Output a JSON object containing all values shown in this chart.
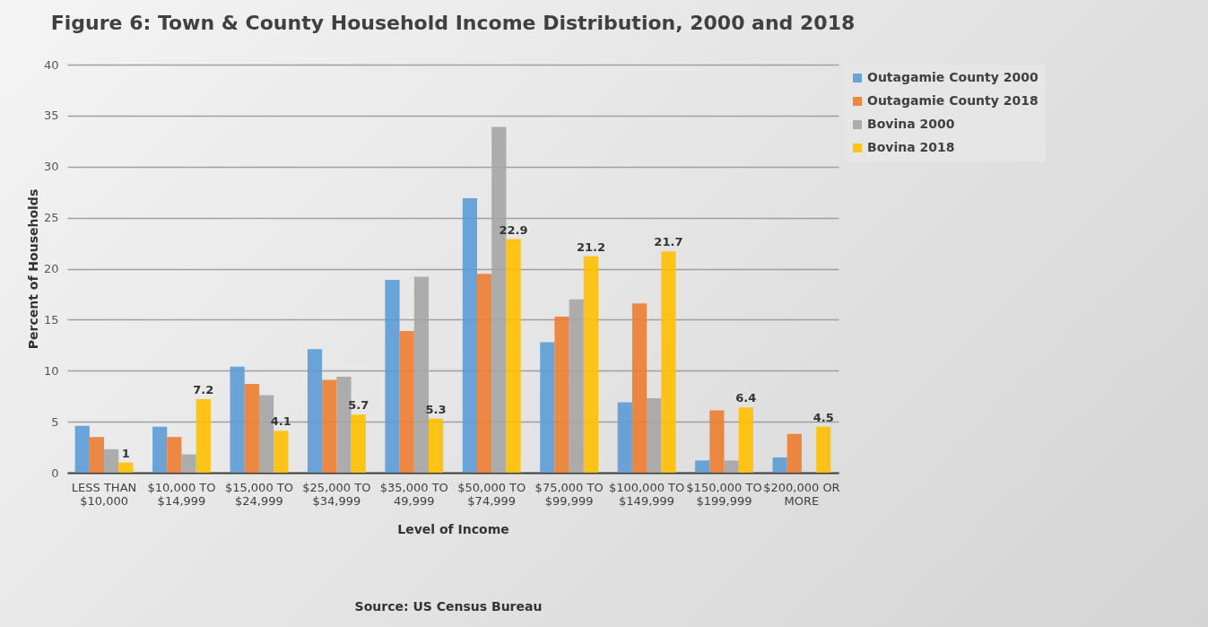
{
  "chart_data": {
    "type": "bar",
    "title": "Figure 6: Town & County Household Income Distribution, 2000 and 2018",
    "xlabel": "Level of Income",
    "ylabel": "Percent of Households",
    "annotations": [
      "Source:  US Census Bureau"
    ],
    "categories": [
      "LESS THAN $10,000",
      "$10,000 TO $14,999",
      "$15,000 TO $24,999",
      "$25,000 TO $34,999",
      "$35,000 TO 49,999",
      "$50,000 TO $74,999",
      "$75,000 TO $99,999",
      "$100,000 TO $149,999",
      "$150,000 TO $199,999",
      "$200,000 OR MORE"
    ],
    "series": [
      {
        "name": "Outagamie County 2000",
        "color": "#5b9bd5",
        "values": [
          4.6,
          4.5,
          10.4,
          12.1,
          18.9,
          26.9,
          12.8,
          6.9,
          1.2,
          1.5
        ]
      },
      {
        "name": "Outagamie County 2018",
        "color": "#ed7d31",
        "values": [
          3.5,
          3.5,
          8.7,
          9.1,
          13.9,
          19.5,
          15.3,
          16.6,
          6.1,
          3.8
        ]
      },
      {
        "name": "Bovina 2000",
        "color": "#a5a5a5",
        "values": [
          2.3,
          1.8,
          7.6,
          9.4,
          19.2,
          33.9,
          17.0,
          7.3,
          1.2,
          null
        ]
      },
      {
        "name": "Bovina 2018",
        "color": "#ffc000",
        "values": [
          1,
          7.2,
          4.1,
          5.7,
          5.3,
          22.9,
          21.2,
          21.7,
          6.4,
          4.5
        ],
        "value_labels": [
          "1",
          "7.2",
          "4.1",
          "5.7",
          "5.3",
          "22.9",
          "21.2",
          "21.7",
          "6.4",
          "4.5"
        ]
      }
    ],
    "ylim": [
      0,
      40
    ],
    "yticks": [
      0,
      5,
      10,
      15,
      20,
      25,
      30,
      35,
      40
    ],
    "grid": "y",
    "legend": "right"
  }
}
